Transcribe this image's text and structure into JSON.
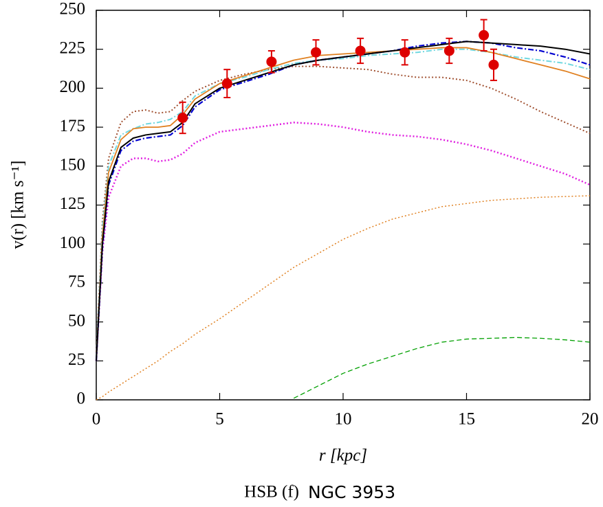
{
  "chart_data": {
    "type": "line",
    "xlabel": "r [kpc]",
    "ylabel": "v(r) [km s⁻¹]",
    "caption": "HSB (f)",
    "galaxy": "NGC 3953",
    "xlim": [
      0,
      20
    ],
    "ylim": [
      0,
      250
    ],
    "xticks": [
      0,
      5,
      10,
      15,
      20
    ],
    "yticks": [
      0,
      25,
      50,
      75,
      100,
      125,
      150,
      175,
      200,
      225,
      250
    ],
    "x": [
      0,
      0.25,
      0.5,
      1,
      1.5,
      2,
      2.5,
      3,
      3.5,
      4,
      5,
      6,
      7,
      8,
      9,
      10,
      11,
      12,
      13,
      14,
      15,
      16,
      17,
      18,
      19,
      20
    ],
    "series": [
      {
        "color": "#00a000",
        "dash": "dashed",
        "width": 1.3,
        "values": [
          null,
          null,
          null,
          null,
          null,
          null,
          null,
          null,
          null,
          null,
          null,
          null,
          null,
          1,
          9,
          17,
          23,
          28,
          33,
          37,
          39,
          39.5,
          40,
          39.5,
          38.5,
          37
        ]
      },
      {
        "color": "#e08020",
        "dash": "dotted",
        "width": 1.5,
        "values": [
          0,
          2,
          5,
          10,
          15,
          20,
          25,
          31,
          36,
          42,
          52,
          63,
          74,
          85,
          94,
          103,
          110,
          116,
          120,
          124,
          126,
          128,
          129,
          130,
          130.5,
          131
        ]
      },
      {
        "color": "#e020e0",
        "dash": "dotted",
        "width": 2.5,
        "values": [
          25,
          95,
          130,
          150,
          155,
          155,
          153,
          154,
          158,
          165,
          172,
          174,
          176,
          178,
          177,
          175,
          172,
          170,
          169,
          167,
          164,
          160,
          155,
          150,
          145,
          138
        ]
      },
      {
        "color": "#a05030",
        "dash": "dotted",
        "width": 2,
        "values": [
          28,
          115,
          155,
          178,
          185,
          186,
          184,
          185,
          192,
          198,
          205,
          209,
          212,
          214,
          214,
          213,
          212,
          209,
          207,
          207,
          205,
          200,
          193,
          185,
          178,
          171
        ]
      },
      {
        "color": "#70d8e0",
        "dash": "dashdot",
        "width": 2,
        "values": [
          27,
          110,
          150,
          170,
          174,
          177,
          178,
          180,
          185,
          195,
          203,
          207,
          212,
          216,
          218,
          219,
          221,
          222,
          223,
          225,
          225,
          223,
          220,
          218,
          216,
          212
        ]
      },
      {
        "color": "#e08020",
        "dash": "solid",
        "width": 1.8,
        "values": [
          26,
          105,
          146,
          167,
          174,
          175,
          175,
          176,
          183,
          193,
          203,
          208,
          213,
          218,
          221,
          222,
          223,
          224,
          225,
          226,
          226,
          223,
          219,
          215,
          211,
          206
        ]
      },
      {
        "color": "#0000d0",
        "dash": "dashdot",
        "width": 2.2,
        "values": [
          25,
          98,
          138,
          160,
          166,
          168,
          169,
          170,
          176,
          188,
          199,
          204,
          209,
          215,
          218,
          220,
          222,
          224,
          227,
          229,
          230,
          229,
          226,
          224,
          220,
          215
        ]
      },
      {
        "color": "#000000",
        "dash": "solid",
        "width": 2,
        "values": [
          25,
          100,
          140,
          162,
          168,
          170,
          171,
          172,
          178,
          190,
          200,
          205,
          210,
          215,
          218,
          220,
          222,
          224,
          226,
          228,
          230,
          229,
          228,
          227,
          225,
          222
        ]
      }
    ],
    "points": {
      "color": "#dd0000",
      "x": [
        3.5,
        5.3,
        7.1,
        8.9,
        10.7,
        12.5,
        14.3,
        15.7,
        16.1
      ],
      "values": [
        181,
        203,
        217,
        223,
        224,
        223,
        224,
        234,
        215
      ],
      "errors": [
        10,
        9,
        7,
        8,
        8,
        8,
        8,
        10,
        10
      ]
    }
  }
}
